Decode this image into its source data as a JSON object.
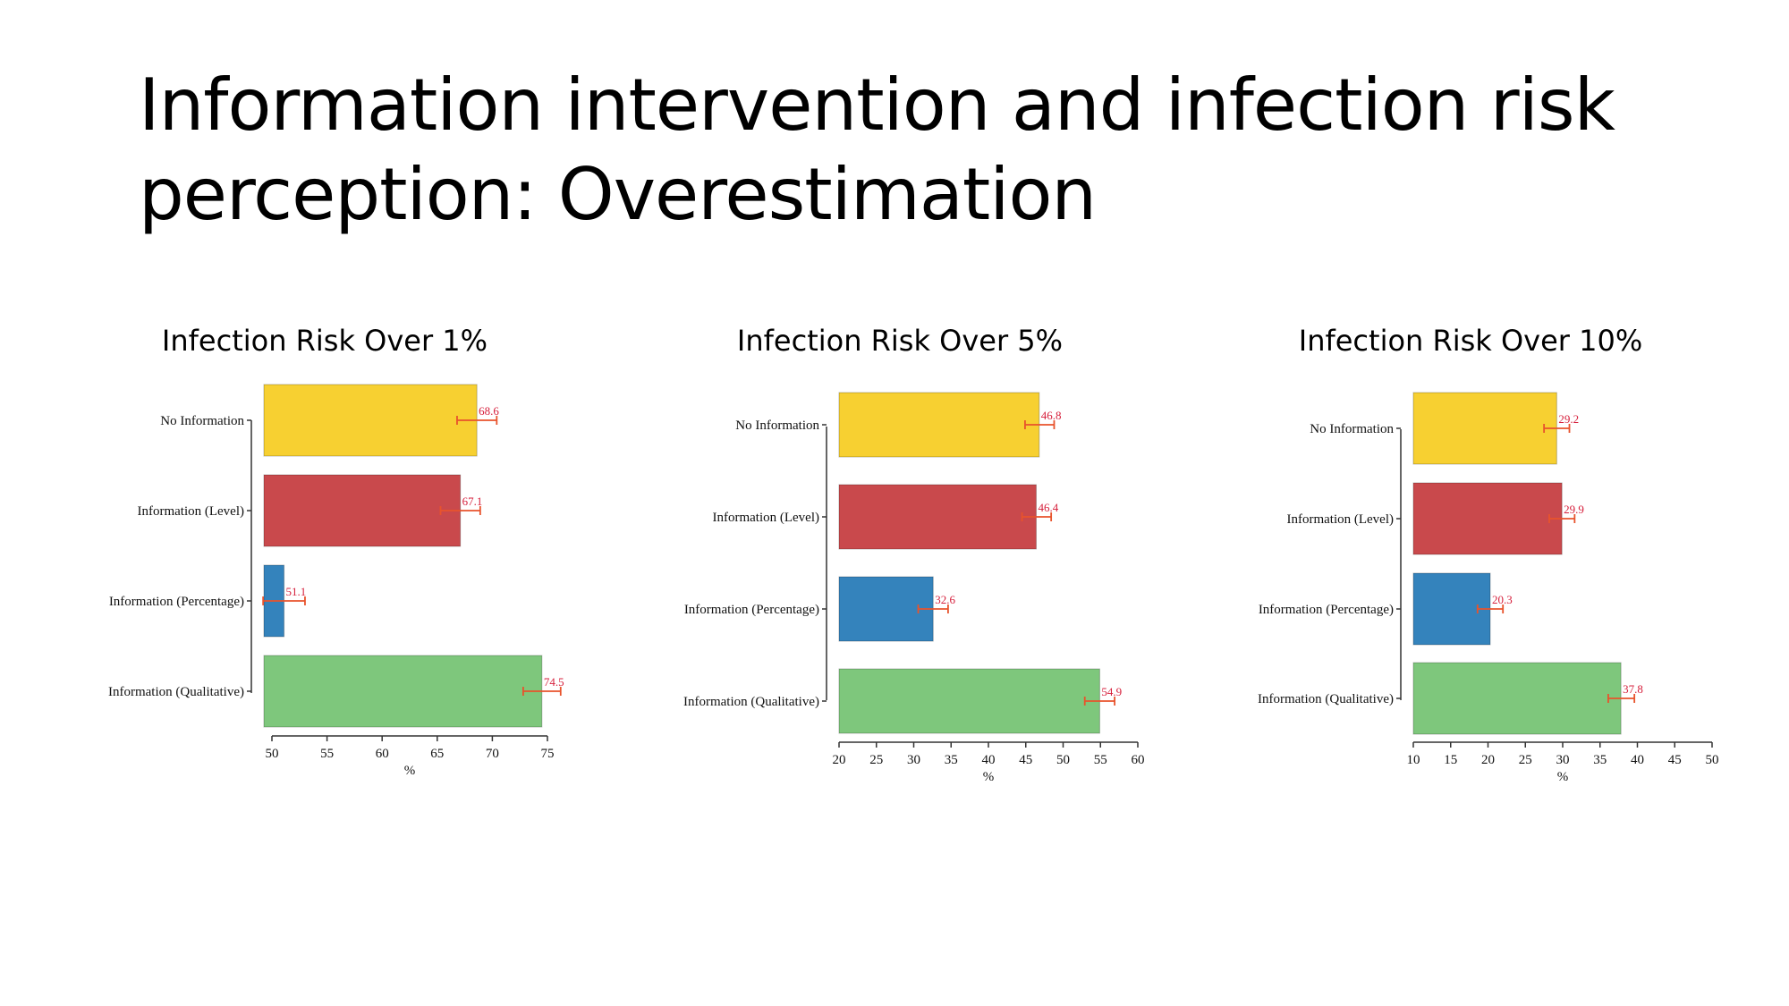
{
  "slide": {
    "title_line1": "Information intervention and infection risk",
    "title_line2": "perception: Overestimation"
  },
  "colors": {
    "No Information": "#f7d031",
    "Information (Level)": "#c9494c",
    "Information (Percentage)": "#3483bc",
    "Information (Qualitative)": "#7ec77c",
    "error_bar": "#e8532c",
    "value_label": "#d6203c"
  },
  "chart_data": [
    {
      "type": "bar",
      "orientation": "horizontal",
      "title": "Infection Risk Over 1%",
      "categories": [
        "No Information",
        "Information (Level)",
        "Information (Percentage)",
        "Information (Qualitative)"
      ],
      "values": [
        68.6,
        67.1,
        51.1,
        74.5
      ],
      "error_low": [
        66.8,
        65.3,
        49.2,
        72.8
      ],
      "error_high": [
        70.4,
        68.9,
        53.0,
        76.2
      ],
      "xlabel": "%",
      "xlim": [
        50,
        75
      ],
      "xticks": [
        50,
        55,
        60,
        65,
        70,
        75
      ],
      "grid": false
    },
    {
      "type": "bar",
      "orientation": "horizontal",
      "title": "Infection Risk Over 5%",
      "categories": [
        "No Information",
        "Information (Level)",
        "Information (Percentage)",
        "Information (Qualitative)"
      ],
      "values": [
        46.8,
        46.4,
        32.6,
        54.9
      ],
      "error_low": [
        44.9,
        44.5,
        30.6,
        52.9
      ],
      "error_high": [
        48.8,
        48.4,
        34.6,
        56.9
      ],
      "xlabel": "%",
      "xlim": [
        20,
        60
      ],
      "xticks": [
        20,
        25,
        30,
        35,
        40,
        45,
        50,
        55,
        60
      ],
      "grid": false
    },
    {
      "type": "bar",
      "orientation": "horizontal",
      "title": "Infection Risk Over 10%",
      "categories": [
        "No Information",
        "Information (Level)",
        "Information (Percentage)",
        "Information (Qualitative)"
      ],
      "values": [
        29.2,
        29.9,
        20.3,
        37.8
      ],
      "error_low": [
        27.5,
        28.2,
        18.6,
        36.1
      ],
      "error_high": [
        30.9,
        31.6,
        22.0,
        39.6
      ],
      "xlabel": "%",
      "xlim": [
        10,
        50
      ],
      "xticks": [
        10,
        15,
        20,
        25,
        30,
        35,
        40,
        45,
        50
      ],
      "grid": false
    }
  ]
}
